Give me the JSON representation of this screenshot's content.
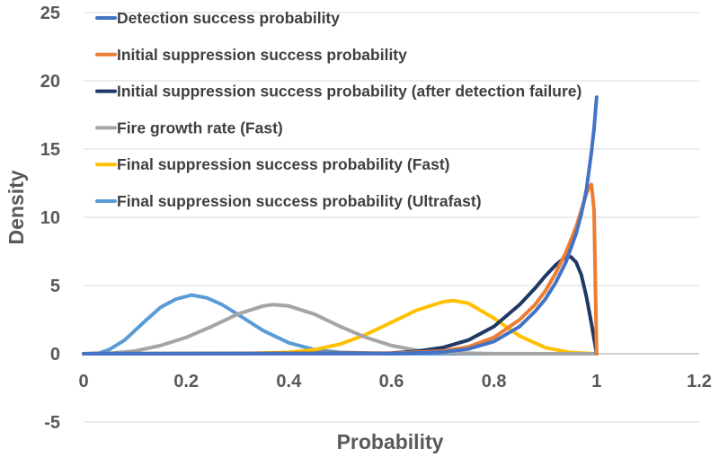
{
  "chart_data": {
    "type": "line",
    "title": "",
    "xlabel": "Probability",
    "ylabel": "Density",
    "xlim": [
      0,
      1.2
    ],
    "ylim": [
      -5,
      25
    ],
    "x_ticks": [
      0,
      0.2,
      0.4,
      0.6,
      0.8,
      1,
      1.2
    ],
    "x_tick_labels": [
      "0",
      "0.2",
      "0.4",
      "0.6",
      "0.8",
      "1",
      "1.2"
    ],
    "y_ticks": [
      -5,
      0,
      5,
      10,
      15,
      20,
      25
    ],
    "y_tick_labels": [
      "-5",
      "0",
      "5",
      "10",
      "15",
      "20",
      "25"
    ],
    "grid": "horizontal",
    "legend_position": "top-left",
    "series": [
      {
        "name": "Detection success probability",
        "color": "#4472c4",
        "x": [
          0,
          0.6,
          0.7,
          0.75,
          0.8,
          0.85,
          0.88,
          0.9,
          0.92,
          0.94,
          0.96,
          0.97,
          0.98,
          0.99,
          0.995,
          1.0
        ],
        "y": [
          0,
          0.01,
          0.12,
          0.35,
          0.9,
          2.0,
          3.1,
          4.0,
          5.2,
          6.7,
          8.8,
          10.2,
          12.0,
          14.8,
          16.5,
          18.8
        ]
      },
      {
        "name": "Initial suppression success probability",
        "color": "#ed7d31",
        "x": [
          0,
          0.6,
          0.7,
          0.75,
          0.8,
          0.85,
          0.88,
          0.9,
          0.92,
          0.94,
          0.96,
          0.97,
          0.98,
          0.985,
          0.99,
          0.995,
          1.0
        ],
        "y": [
          0,
          0.03,
          0.2,
          0.5,
          1.2,
          2.5,
          3.6,
          4.6,
          5.9,
          7.4,
          9.3,
          10.5,
          11.7,
          12.2,
          12.4,
          10.5,
          0
        ]
      },
      {
        "name": "Initial suppression success probability (after detection failure)",
        "color": "#203864",
        "x": [
          0,
          0.6,
          0.65,
          0.7,
          0.75,
          0.8,
          0.85,
          0.88,
          0.9,
          0.92,
          0.94,
          0.95,
          0.96,
          0.97,
          0.98,
          0.99,
          1.0
        ],
        "y": [
          0,
          0.05,
          0.18,
          0.45,
          1.0,
          2.0,
          3.6,
          4.8,
          5.7,
          6.5,
          7.1,
          7.1,
          6.7,
          5.8,
          4.2,
          2.2,
          0
        ]
      },
      {
        "name": "Fire growth rate (Fast)",
        "color": "#a5a5a5",
        "x": [
          0,
          0.05,
          0.1,
          0.15,
          0.2,
          0.25,
          0.3,
          0.35,
          0.37,
          0.4,
          0.45,
          0.5,
          0.55,
          0.6,
          0.65,
          0.7,
          0.8,
          1.0
        ],
        "y": [
          0,
          0.03,
          0.2,
          0.6,
          1.2,
          2.0,
          2.9,
          3.5,
          3.6,
          3.5,
          2.9,
          2.0,
          1.2,
          0.6,
          0.25,
          0.08,
          0.01,
          0
        ]
      },
      {
        "name": "Final suppression success probability (Fast)",
        "color": "#ffc000",
        "x": [
          0,
          0.3,
          0.4,
          0.45,
          0.5,
          0.55,
          0.6,
          0.65,
          0.7,
          0.72,
          0.75,
          0.8,
          0.85,
          0.9,
          0.95,
          1.0
        ],
        "y": [
          0,
          0.01,
          0.1,
          0.3,
          0.7,
          1.4,
          2.3,
          3.2,
          3.8,
          3.9,
          3.7,
          2.6,
          1.3,
          0.45,
          0.08,
          0
        ]
      },
      {
        "name": "Final suppression success probability (Ultrafast)",
        "color": "#5b9bd5",
        "x": [
          0,
          0.03,
          0.05,
          0.08,
          0.1,
          0.12,
          0.15,
          0.18,
          0.21,
          0.24,
          0.27,
          0.3,
          0.35,
          0.4,
          0.45,
          0.5,
          0.6,
          1.0
        ],
        "y": [
          0,
          0.05,
          0.3,
          1.0,
          1.7,
          2.4,
          3.4,
          4.0,
          4.3,
          4.1,
          3.6,
          2.9,
          1.7,
          0.8,
          0.3,
          0.1,
          0,
          0
        ]
      }
    ]
  }
}
